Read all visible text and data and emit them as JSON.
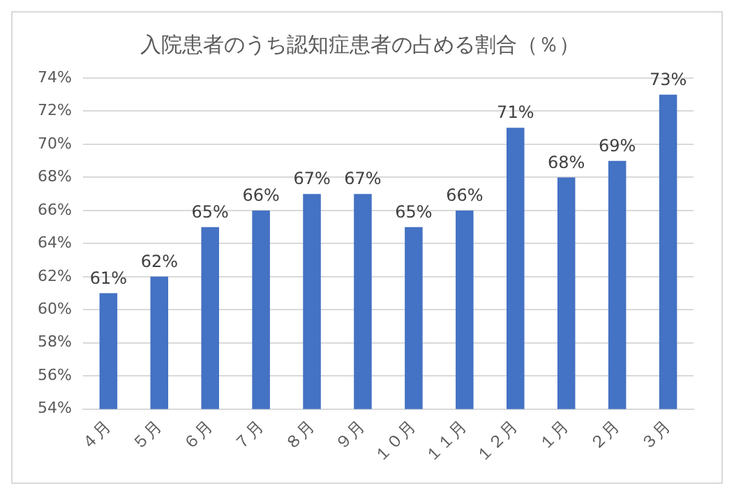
{
  "chart_data": {
    "type": "bar",
    "title": "入院患者のうち認知症患者の占める割合（％）",
    "categories": [
      "４月",
      "５月",
      "６月",
      "７月",
      "８月",
      "９月",
      "１０月",
      "１１月",
      "１２月",
      "１月",
      "２月",
      "３月"
    ],
    "values": [
      61,
      62,
      65,
      66,
      67,
      67,
      65,
      66,
      71,
      68,
      69,
      73
    ],
    "value_labels": [
      "61%",
      "62%",
      "65%",
      "66%",
      "67%",
      "67%",
      "65%",
      "66%",
      "71%",
      "68%",
      "69%",
      "73%"
    ],
    "color": "#4472c4",
    "ylim": [
      54,
      74
    ],
    "yticks": [
      {
        "value": 54,
        "label": "54%"
      },
      {
        "value": 56,
        "label": "56%"
      },
      {
        "value": 58,
        "label": "58%"
      },
      {
        "value": 60,
        "label": "60%"
      },
      {
        "value": 62,
        "label": "62%"
      },
      {
        "value": 64,
        "label": "64%"
      },
      {
        "value": 66,
        "label": "66%"
      },
      {
        "value": 68,
        "label": "68%"
      },
      {
        "value": 70,
        "label": "70%"
      },
      {
        "value": 72,
        "label": "72%"
      },
      {
        "value": 74,
        "label": "74%"
      }
    ],
    "grid": "y"
  }
}
